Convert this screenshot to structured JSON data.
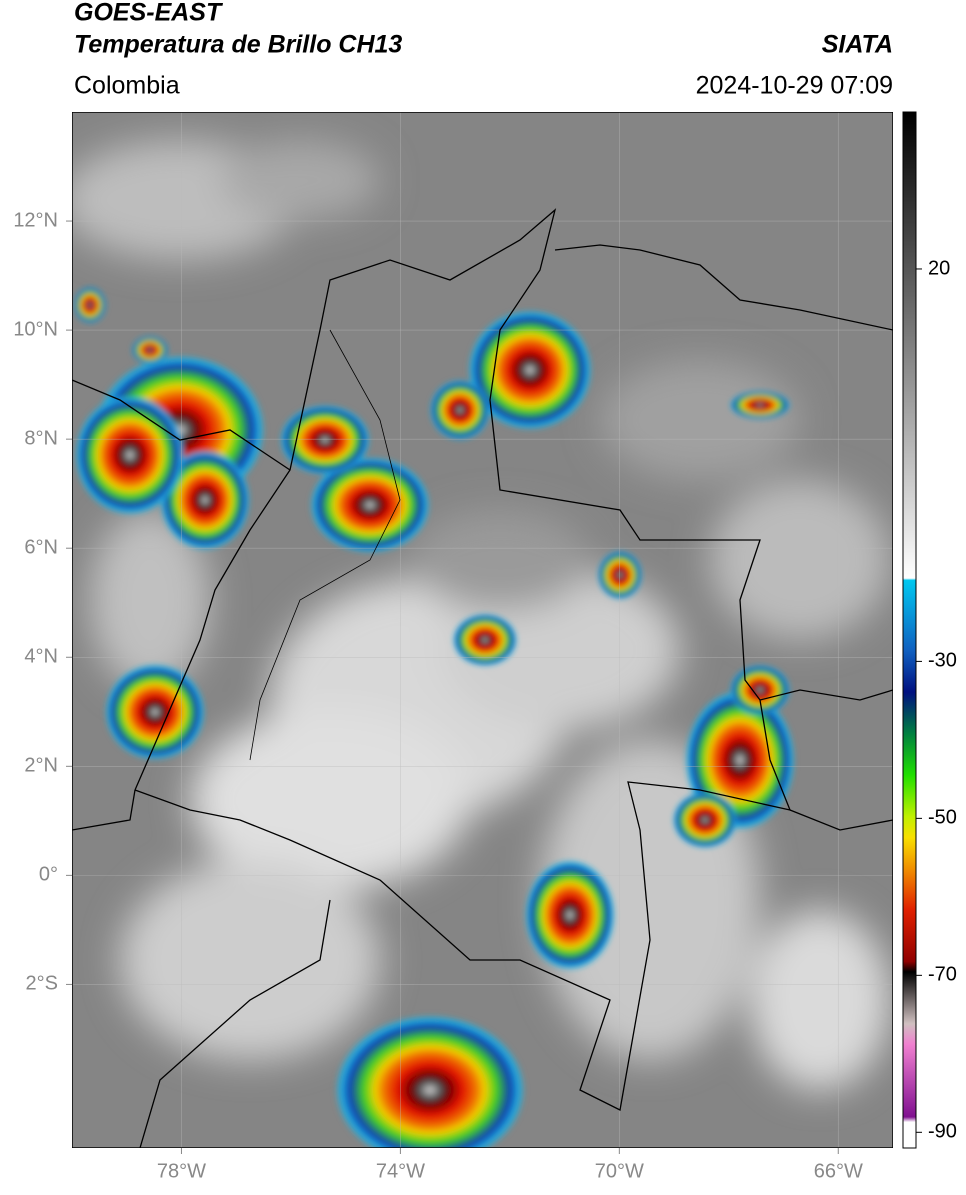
{
  "header": {
    "title": "GOES-EAST",
    "subtitle": "Temperatura de Brillo CH13",
    "region": "Colombia",
    "source": "SIATA",
    "timestamp": "2024-10-29 07:09"
  },
  "map": {
    "xlim": [
      -80,
      -65
    ],
    "ylim": [
      -5,
      14
    ],
    "xticks": [
      {
        "value": -78,
        "label": "78°W"
      },
      {
        "value": -74,
        "label": "74°W"
      },
      {
        "value": -70,
        "label": "70°W"
      },
      {
        "value": -66,
        "label": "66°W"
      }
    ],
    "yticks": [
      {
        "value": 12,
        "label": "12°N"
      },
      {
        "value": 10,
        "label": "10°N"
      },
      {
        "value": 8,
        "label": "8°N"
      },
      {
        "value": 6,
        "label": "6°N"
      },
      {
        "value": 4,
        "label": "4°N"
      },
      {
        "value": 2,
        "label": "2°N"
      },
      {
        "value": 0,
        "label": "0°"
      },
      {
        "value": -2,
        "label": "2°S"
      }
    ],
    "grid": true
  },
  "colorbar": {
    "lim": [
      -92,
      40
    ],
    "ticks": [
      20,
      -30,
      -50,
      -70,
      -90
    ]
  }
}
